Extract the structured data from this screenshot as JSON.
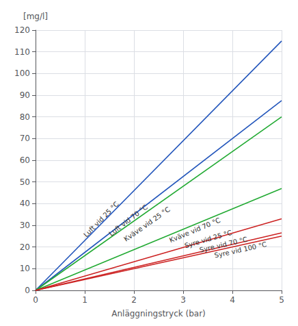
{
  "chart_data": {
    "type": "line",
    "xlabel": "Anläggningstryck (bar)",
    "ylabel": "[mg/l]",
    "x": [
      0,
      5
    ],
    "xlim": [
      0,
      5
    ],
    "xticks": [
      0,
      1,
      2,
      3,
      4,
      5
    ],
    "ylim": [
      0,
      120
    ],
    "yticks": [
      0,
      10,
      20,
      30,
      40,
      50,
      60,
      70,
      80,
      90,
      100,
      110,
      120
    ],
    "grid": true,
    "series": [
      {
        "color": "#2255bb",
        "values": [
          0,
          115
        ]
      },
      {
        "color": "#2255bb",
        "values": [
          0,
          87.5
        ]
      },
      {
        "color": "#22aa33",
        "values": [
          0,
          80
        ]
      },
      {
        "color": "#22aa33",
        "values": [
          0,
          47
        ]
      },
      {
        "color": "#cc2222",
        "values": [
          0,
          33
        ]
      },
      {
        "color": "#cc2222",
        "values": [
          0,
          26.5
        ]
      },
      {
        "color": "#cc2222",
        "values": [
          0,
          25
        ]
      }
    ],
    "annotations": [
      {
        "text": "Luft vid 25 °C",
        "x": 1.05,
        "y": 24.0
      },
      {
        "text": "Luft vid 70 °C",
        "x": 1.55,
        "y": 24.5
      },
      {
        "text": "Kväve vid 25 °C",
        "x": 1.85,
        "y": 22.0
      },
      {
        "text": "Kväve vid 70 °C",
        "x": 2.75,
        "y": 21.5
      },
      {
        "text": "Syre vid 25 °C",
        "x": 3.05,
        "y": 19.0
      },
      {
        "text": "Syre vid 70 °C",
        "x": 3.35,
        "y": 17.0
      },
      {
        "text": "Syre vid 100 °C",
        "x": 3.65,
        "y": 14.5
      }
    ]
  }
}
